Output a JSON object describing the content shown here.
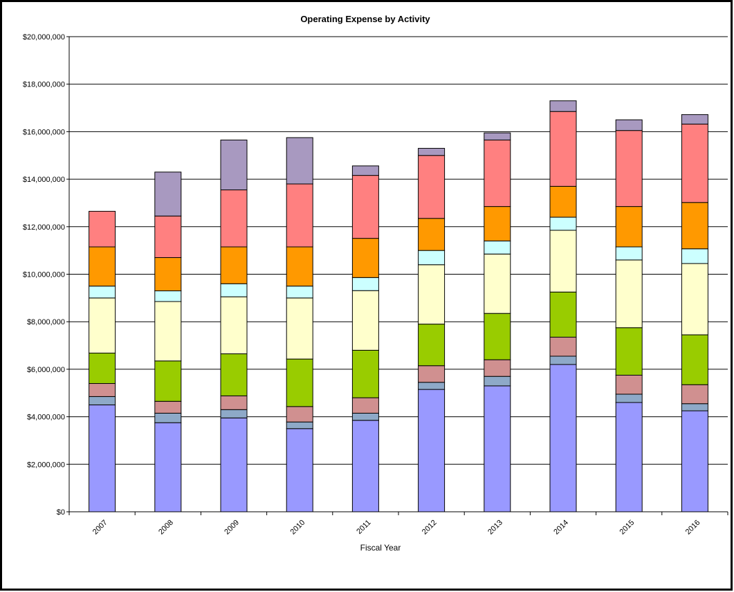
{
  "chart_data": {
    "type": "bar",
    "stacked": true,
    "title": "Operating Expense by Activity",
    "xlabel": "Fiscal Year",
    "ylabel": "",
    "ylim": [
      0,
      20000000
    ],
    "y_tick_values": [
      0,
      2000000,
      4000000,
      6000000,
      8000000,
      10000000,
      12000000,
      14000000,
      16000000,
      18000000,
      20000000
    ],
    "y_tick_labels": [
      "$0",
      "$2,000,000",
      "$4,000,000",
      "$6,000,000",
      "$8,000,000",
      "$10,000,000",
      "$12,000,000",
      "$14,000,000",
      "$16,000,000",
      "$18,000,000",
      "$20,000,000"
    ],
    "grid": true,
    "legend": "none",
    "categories": [
      "2007",
      "2008",
      "2009",
      "2010",
      "2011",
      "2012",
      "2013",
      "2014",
      "2015",
      "2016"
    ],
    "series": [
      {
        "color": "#9999FF",
        "values": [
          4500000,
          3750000,
          3950000,
          3500000,
          3850000,
          5150000,
          5300000,
          6200000,
          4600000,
          4250000
        ]
      },
      {
        "color": "#8EA9C8",
        "values": [
          350000,
          400000,
          350000,
          280000,
          300000,
          300000,
          400000,
          350000,
          350000,
          300000
        ]
      },
      {
        "color": "#D09090",
        "values": [
          550000,
          500000,
          580000,
          650000,
          650000,
          700000,
          700000,
          800000,
          800000,
          800000
        ]
      },
      {
        "color": "#99CC00",
        "values": [
          1280000,
          1700000,
          1770000,
          2000000,
          2000000,
          1750000,
          1950000,
          1900000,
          2000000,
          2100000
        ]
      },
      {
        "color": "#FFFFCC",
        "values": [
          2320000,
          2500000,
          2400000,
          2570000,
          2510000,
          2500000,
          2500000,
          2600000,
          2850000,
          3000000
        ]
      },
      {
        "color": "#CCFFFF",
        "values": [
          500000,
          450000,
          550000,
          500000,
          550000,
          600000,
          550000,
          550000,
          550000,
          620000
        ]
      },
      {
        "color": "#FF9900",
        "values": [
          1650000,
          1400000,
          1550000,
          1650000,
          1650000,
          1350000,
          1450000,
          1300000,
          1700000,
          1950000
        ]
      },
      {
        "color": "#FF8080",
        "values": [
          1500000,
          1750000,
          2400000,
          2650000,
          2650000,
          2650000,
          2800000,
          3150000,
          3200000,
          3300000
        ]
      },
      {
        "color": "#A899C0",
        "values": [
          0,
          1850000,
          2100000,
          1950000,
          400000,
          300000,
          300000,
          450000,
          450000,
          400000
        ]
      }
    ]
  }
}
